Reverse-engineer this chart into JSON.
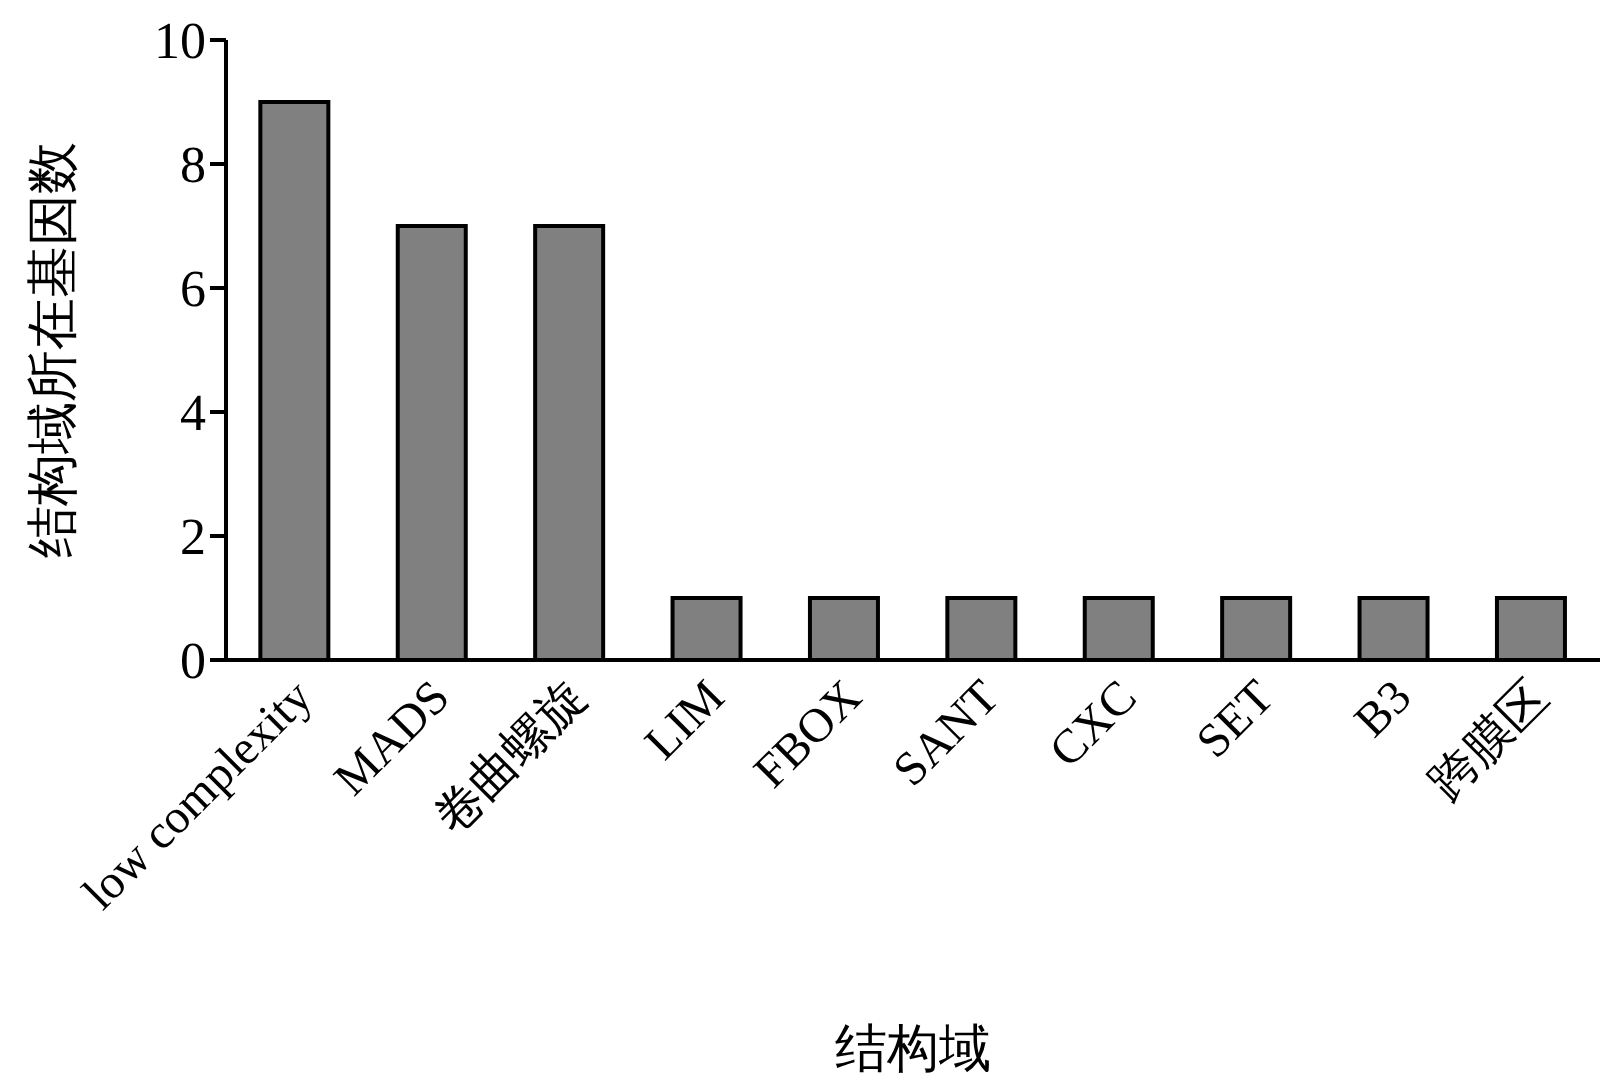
{
  "chart_data": {
    "type": "bar",
    "xlabel": "结构域",
    "ylabel": "结构域所在基因数",
    "categories": [
      "low complexity",
      "MADS",
      "卷曲螺旋",
      "LIM",
      "FBOX",
      "SANT",
      "CXC",
      "SET",
      "B3",
      "跨膜区"
    ],
    "values": [
      9,
      7,
      7,
      1,
      1,
      1,
      1,
      1,
      1,
      1
    ],
    "color": "#808080",
    "ylim": [
      0,
      10
    ],
    "yticks": [
      0,
      2,
      4,
      6,
      8,
      10
    ],
    "grid": false,
    "legend": false
  }
}
